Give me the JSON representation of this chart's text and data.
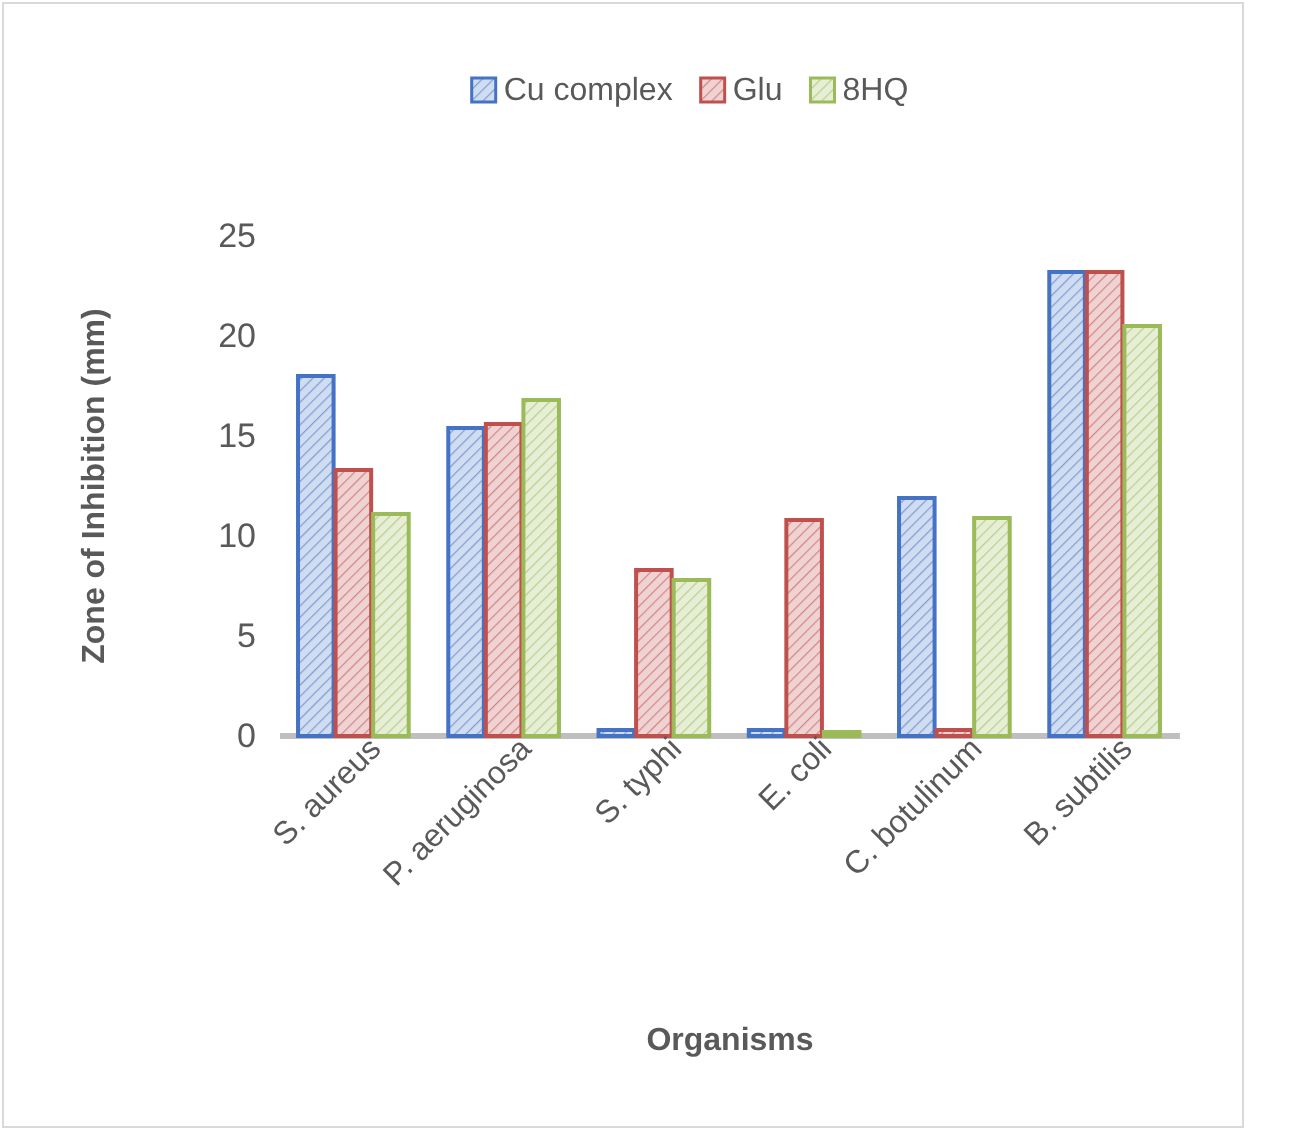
{
  "chart_data": {
    "type": "bar",
    "xlabel": "Organisms",
    "ylabel": "Zone of Inhibition (mm)",
    "categories": [
      "S. aureus",
      "P. aeruginosa",
      "S. typhi",
      "E. coli",
      "C. botulinum",
      "B. subtilis"
    ],
    "series": [
      {
        "name": "Cu complex",
        "color": "#4472c4",
        "values": [
          18,
          15.4,
          0.3,
          0.3,
          11.9,
          23.2
        ]
      },
      {
        "name": "Glu",
        "color": "#c0504d",
        "values": [
          13.3,
          15.6,
          8.3,
          10.8,
          0.3,
          23.2
        ]
      },
      {
        "name": "8HQ",
        "color": "#9bbb59",
        "values": [
          11.1,
          16.8,
          7.8,
          0.2,
          10.9,
          20.5
        ]
      }
    ],
    "ylim": [
      0,
      25
    ],
    "yticks": [
      0,
      5,
      10,
      15,
      20,
      25
    ],
    "grid": false,
    "legend": "top"
  }
}
